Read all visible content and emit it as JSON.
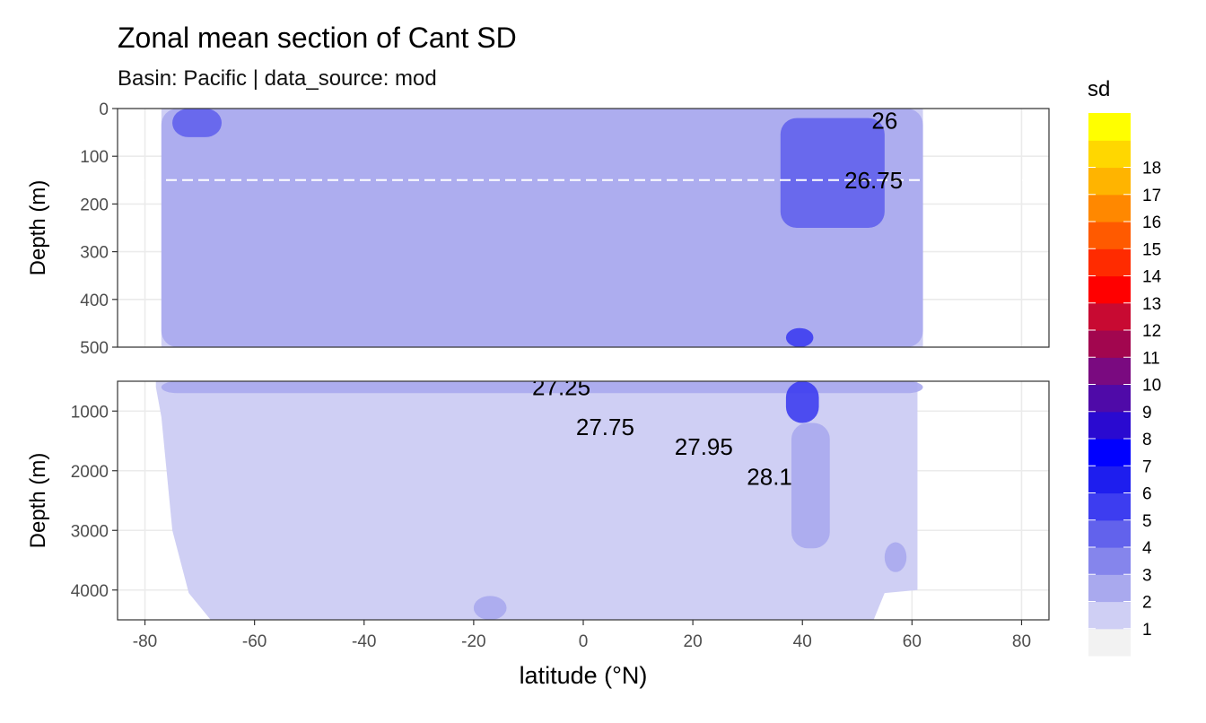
{
  "title": "Zonal mean section of Cant SD",
  "subtitle": "Basin: Pacific | data_source: mod",
  "chart_data": {
    "type": "heatmap",
    "title": "Zonal mean section of Cant SD",
    "subtitle": "Basin: Pacific | data_source: mod",
    "xlabel": "latitude (°N)",
    "xlim": [
      -85,
      85
    ],
    "x_ticks": [
      -80,
      -60,
      -40,
      -20,
      0,
      20,
      40,
      60,
      80
    ],
    "x_tick_labels": [
      "-80",
      "-60",
      "-40",
      "-20",
      "0",
      "20",
      "40",
      "60",
      "80"
    ],
    "grid": true,
    "legend_position": "right",
    "legend": {
      "title": "sd",
      "levels": [
        "1",
        "2",
        "3",
        "4",
        "5",
        "6",
        "7",
        "8",
        "9",
        "10",
        "11",
        "12",
        "13",
        "14",
        "15",
        "16",
        "17",
        "18"
      ],
      "colors": [
        "#f2f2f2",
        "#cfcff4",
        "#a9a9ee",
        "#8585ec",
        "#6262ec",
        "#3d3df0",
        "#1e1eee",
        "#0000ff",
        "#2a0ad0",
        "#4f0aa8",
        "#7a0a80",
        "#a2064f",
        "#c80a32",
        "#ff0000",
        "#ff2b00",
        "#ff5a00",
        "#ff8800",
        "#ffb400",
        "#ffd700",
        "#ffff00"
      ]
    },
    "panels": [
      {
        "ylabel": "Depth (m)",
        "ylim": [
          0,
          500
        ],
        "y_ticks": [
          0,
          100,
          200,
          300,
          400,
          500
        ],
        "y_tick_labels": [
          "0",
          "100",
          "200",
          "300",
          "400",
          "500"
        ],
        "reference_line_depth": 150,
        "contour_labels": [
          {
            "text": "26",
            "lat": 55,
            "depth": 25
          },
          {
            "text": "26.75",
            "lat": 53,
            "depth": 150
          }
        ],
        "sd_regions": [
          {
            "level": "2",
            "lat": [
              -77,
              62
            ],
            "depth": [
              0,
              500
            ]
          },
          {
            "level": "4",
            "lat": [
              -75,
              -66
            ],
            "depth": [
              0,
              60
            ]
          },
          {
            "level": "4",
            "lat": [
              36,
              55
            ],
            "depth": [
              20,
              250
            ]
          },
          {
            "level": "5",
            "lat": [
              37,
              42
            ],
            "depth": [
              460,
              500
            ]
          }
        ]
      },
      {
        "ylabel": "Depth (m)",
        "ylim": [
          500,
          4500
        ],
        "y_ticks": [
          1000,
          2000,
          3000,
          4000
        ],
        "y_tick_labels": [
          "1000",
          "2000",
          "3000",
          "4000"
        ],
        "contour_labels": [
          {
            "text": "27.25",
            "lat": -4,
            "depth": 600
          },
          {
            "text": "27.75",
            "lat": 4,
            "depth": 1270
          },
          {
            "text": "27.95",
            "lat": 22,
            "depth": 1600
          },
          {
            "text": "28.1",
            "lat": 34,
            "depth": 2100
          }
        ],
        "sd_regions": [
          {
            "level": "2",
            "lat": [
              -77,
              62
            ],
            "depth": [
              500,
              700
            ]
          },
          {
            "level": "5",
            "lat": [
              37,
              43
            ],
            "depth": [
              500,
              1200
            ]
          },
          {
            "level": "2",
            "lat": [
              38,
              45
            ],
            "depth": [
              1200,
              3300
            ]
          },
          {
            "level": "2",
            "lat": [
              55,
              59
            ],
            "depth": [
              3200,
              3700
            ]
          },
          {
            "level": "2",
            "lat": [
              -20,
              -14
            ],
            "depth": [
              4100,
              4500
            ]
          }
        ]
      }
    ]
  }
}
